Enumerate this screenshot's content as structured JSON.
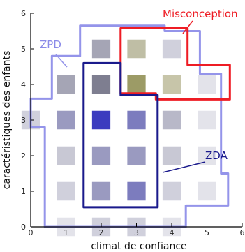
{
  "chart_data": {
    "type": "heatmap",
    "xlabel": "climat de confiance",
    "ylabel": "caractéristiques des enfants",
    "xlim": [
      0,
      6
    ],
    "ylim": [
      0,
      6
    ],
    "x_ticks": [
      "0",
      "1",
      "2",
      "3",
      "4",
      "5",
      "6"
    ],
    "y_ticks": [
      "0",
      "1",
      "2",
      "3",
      "4",
      "5",
      "6"
    ],
    "grid": false,
    "cells": [
      {
        "x": 1,
        "y": 0,
        "color": "#e3e3ea"
      },
      {
        "x": 2,
        "y": 0,
        "color": "#d0d0dc"
      },
      {
        "x": 3,
        "y": 0,
        "color": "#d0d0dc"
      },
      {
        "x": 4,
        "y": 0,
        "color": "#e3e3ea"
      },
      {
        "x": 1,
        "y": 1,
        "color": "#d0d0dc"
      },
      {
        "x": 2,
        "y": 1,
        "color": "#9a9ac0"
      },
      {
        "x": 3,
        "y": 1,
        "color": "#7c7cbe"
      },
      {
        "x": 4,
        "y": 1,
        "color": "#d0d0dc"
      },
      {
        "x": 5,
        "y": 1,
        "color": "#e3e3ea"
      },
      {
        "x": 1,
        "y": 2,
        "color": "#c8c8d4"
      },
      {
        "x": 2,
        "y": 2,
        "color": "#9a9ac0"
      },
      {
        "x": 3,
        "y": 2,
        "color": "#9a9ac0"
      },
      {
        "x": 4,
        "y": 2,
        "color": "#c8c8d4"
      },
      {
        "x": 5,
        "y": 2,
        "color": "#e3e3ea"
      },
      {
        "x": 0,
        "y": 3,
        "color": "#d0d0dc"
      },
      {
        "x": 1,
        "y": 3,
        "color": "#9a9ac0"
      },
      {
        "x": 2,
        "y": 3,
        "color": "#3b3bbf"
      },
      {
        "x": 3,
        "y": 3,
        "color": "#7c7cbe"
      },
      {
        "x": 4,
        "y": 3,
        "color": "#b8b8c8"
      },
      {
        "x": 5,
        "y": 3,
        "color": "#e3e3ea"
      },
      {
        "x": 1,
        "y": 4,
        "color": "#a5a5b5"
      },
      {
        "x": 2,
        "y": 4,
        "color": "#7e7e90"
      },
      {
        "x": 3,
        "y": 4,
        "color": "#9c9b66"
      },
      {
        "x": 4,
        "y": 4,
        "color": "#c7c5a9"
      },
      {
        "x": 5,
        "y": 4,
        "color": "#e3e3ea"
      },
      {
        "x": 2,
        "y": 5,
        "color": "#a5a5b5"
      },
      {
        "x": 3,
        "y": 5,
        "color": "#bfbea5"
      },
      {
        "x": 4,
        "y": 5,
        "color": "#d0d0dc"
      }
    ],
    "regions": [
      {
        "label": "ZPD",
        "color": "#9494ea",
        "path": [
          [
            0.4,
            0.0
          ],
          [
            4.4,
            0.0
          ],
          [
            4.4,
            0.6
          ],
          [
            5.6,
            0.6
          ],
          [
            5.6,
            1.5
          ],
          [
            5.4,
            1.5
          ],
          [
            5.4,
            4.3
          ],
          [
            4.8,
            4.3
          ],
          [
            4.8,
            5.5
          ],
          [
            3.8,
            5.5
          ],
          [
            3.8,
            5.65
          ],
          [
            1.4,
            5.65
          ],
          [
            1.4,
            4.8
          ],
          [
            0.6,
            4.8
          ],
          [
            0.6,
            3.6
          ],
          [
            0.0,
            3.6
          ],
          [
            0.0,
            2.8
          ],
          [
            0.4,
            2.8
          ]
        ]
      },
      {
        "label": "Misconception",
        "color": "#ee1c24",
        "path": [
          [
            2.55,
            5.58
          ],
          [
            4.45,
            5.58
          ],
          [
            4.45,
            4.55
          ],
          [
            5.65,
            4.55
          ],
          [
            5.65,
            3.58
          ],
          [
            3.55,
            3.58
          ],
          [
            3.55,
            3.75
          ],
          [
            2.55,
            3.75
          ]
        ]
      },
      {
        "label": "ZDA",
        "color": "#1a1a8c",
        "path": [
          [
            1.5,
            4.6
          ],
          [
            2.55,
            4.6
          ],
          [
            2.55,
            3.7
          ],
          [
            3.6,
            3.7
          ],
          [
            3.6,
            0.55
          ],
          [
            1.5,
            0.55
          ]
        ]
      }
    ],
    "annotations": [
      "ZPD",
      "Misconception",
      "ZDA"
    ]
  }
}
